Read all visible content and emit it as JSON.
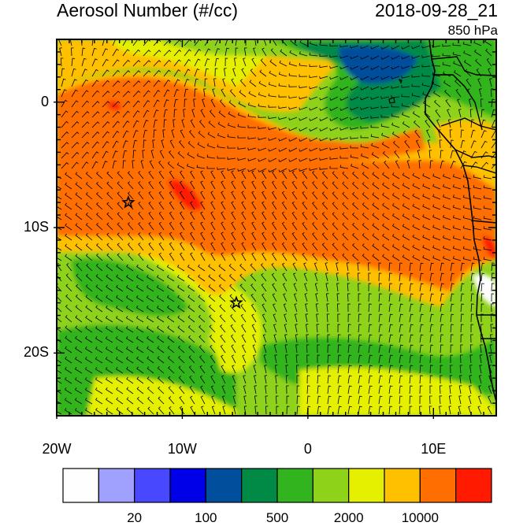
{
  "header": {
    "title": "Aerosol Number (#/cc)",
    "datetime": "2018-09-28_21",
    "level": "850 hPa"
  },
  "axes": {
    "y_ticks": [
      {
        "label": "0",
        "lat": 0
      },
      {
        "label": "10S",
        "lat": -10
      },
      {
        "label": "20S",
        "lat": -20
      }
    ],
    "x_ticks": [
      {
        "label": "20W",
        "lon": -20
      },
      {
        "label": "10W",
        "lon": -10
      },
      {
        "label": "0",
        "lon": 0
      },
      {
        "label": "10E",
        "lon": 10
      }
    ],
    "lon_range": [
      -20,
      15
    ],
    "lat_range": [
      -25,
      5
    ]
  },
  "colorbar": {
    "colors": [
      "#fefefe",
      "#a0a0ff",
      "#4848ff",
      "#0000e8",
      "#004e9c",
      "#008a46",
      "#32b41e",
      "#8ed21a",
      "#e4f000",
      "#ffc000",
      "#ff6e00",
      "#ff1a00"
    ],
    "labels": [
      "20",
      "100",
      "500",
      "2000",
      "10000"
    ]
  },
  "markers": [
    {
      "name": "star-marker-north",
      "lon": -14.3,
      "lat": -8.0
    },
    {
      "name": "star-marker-south",
      "lon": -5.7,
      "lat": -16.0
    }
  ],
  "legend_colors": {
    "land_outline": "#000000"
  }
}
